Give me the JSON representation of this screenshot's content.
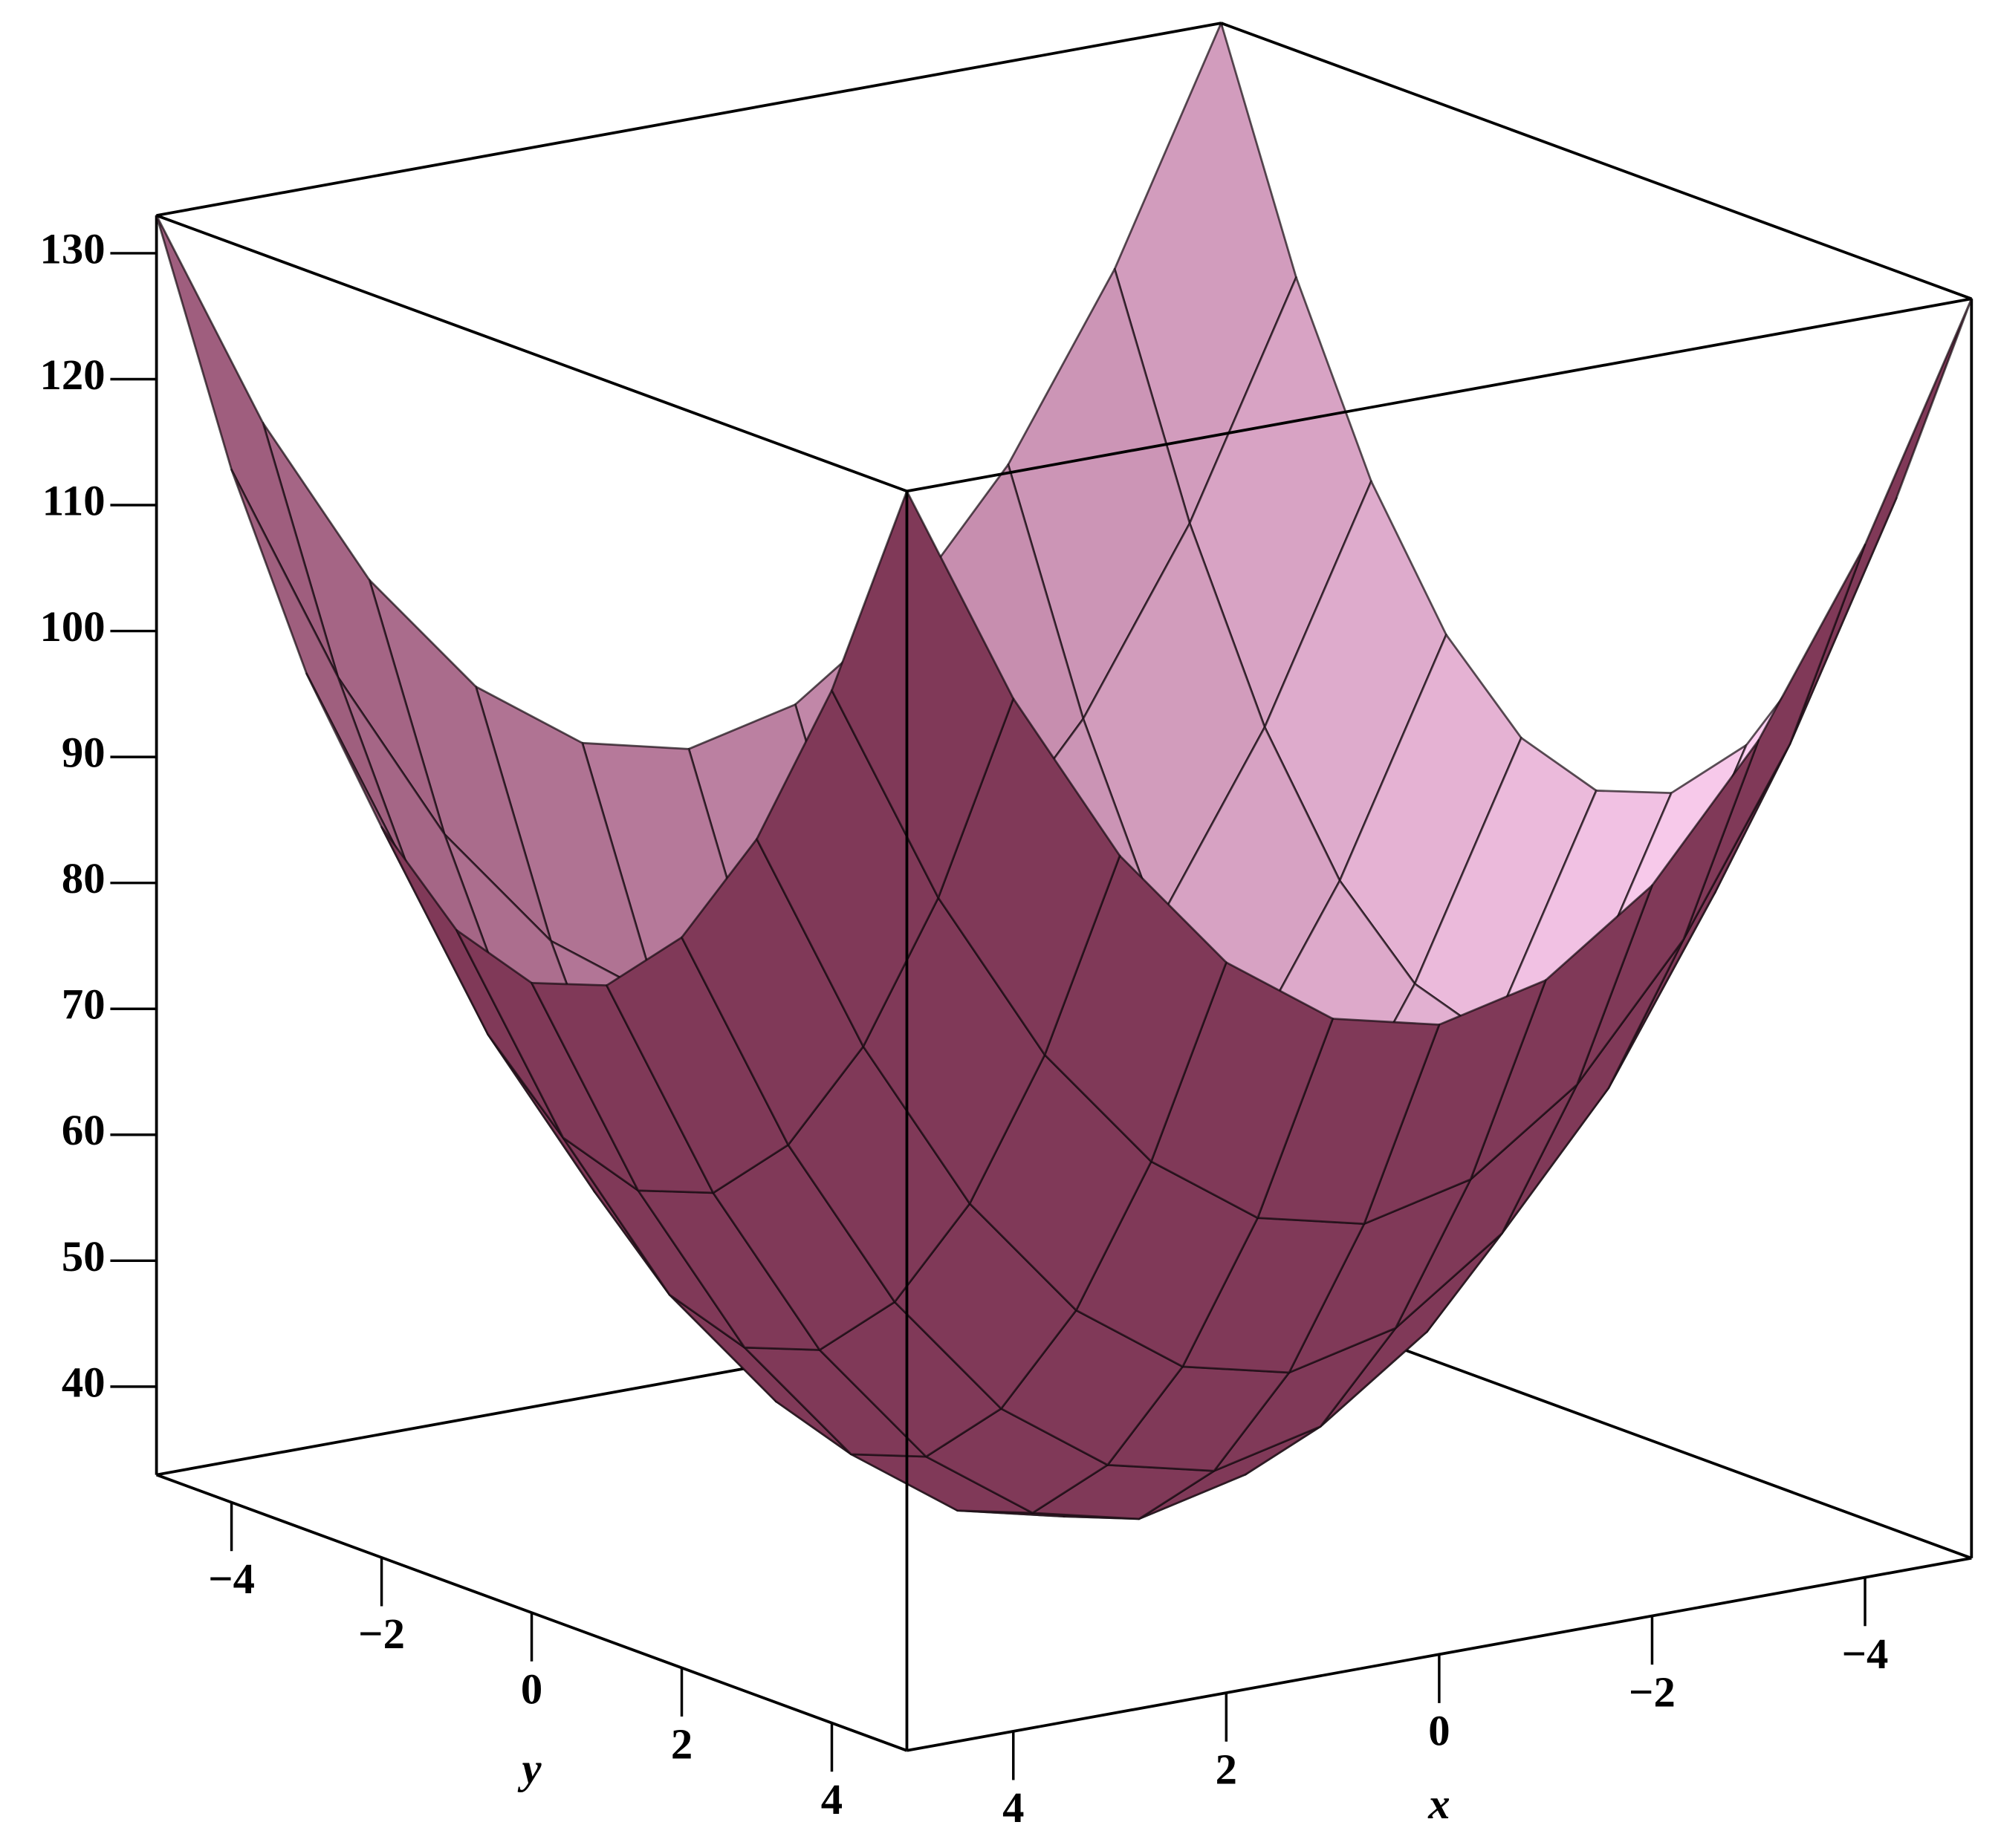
{
  "chart_data": {
    "type": "surface",
    "x": [
      -5,
      -4,
      -3,
      -2,
      -1,
      0,
      1,
      2,
      3,
      4,
      5
    ],
    "y": [
      -5,
      -4,
      -3,
      -2,
      -1,
      0,
      1,
      2,
      3,
      4,
      5
    ],
    "z": [
      [
        133,
        115,
        101,
        91,
        85,
        83,
        85,
        91,
        101,
        115,
        133
      ],
      [
        115,
        97,
        83,
        73,
        67,
        65,
        67,
        73,
        83,
        97,
        115
      ],
      [
        101,
        83,
        69,
        59,
        53,
        51,
        53,
        59,
        69,
        83,
        101
      ],
      [
        91,
        73,
        59,
        49,
        43,
        41,
        43,
        49,
        59,
        73,
        91
      ],
      [
        85,
        67,
        53,
        43,
        37,
        35,
        37,
        43,
        53,
        67,
        85
      ],
      [
        83,
        65,
        51,
        41,
        35,
        33,
        35,
        41,
        51,
        65,
        83
      ],
      [
        85,
        67,
        53,
        43,
        37,
        35,
        37,
        43,
        53,
        67,
        85
      ],
      [
        91,
        73,
        59,
        49,
        43,
        41,
        43,
        49,
        59,
        73,
        91
      ],
      [
        101,
        83,
        69,
        59,
        53,
        51,
        53,
        59,
        69,
        83,
        101
      ],
      [
        115,
        97,
        83,
        73,
        67,
        65,
        67,
        73,
        83,
        97,
        115
      ],
      [
        133,
        115,
        101,
        91,
        85,
        83,
        85,
        91,
        101,
        115,
        133
      ]
    ],
    "xlim": [
      -5,
      5
    ],
    "ylim": [
      -5,
      5
    ],
    "zlim": [
      33,
      133
    ],
    "xticks": [
      {
        "value": -4,
        "label": "−4"
      },
      {
        "value": -2,
        "label": "−2"
      },
      0,
      2,
      4
    ],
    "yticks": [
      {
        "value": -4,
        "label": "−4"
      },
      {
        "value": -2,
        "label": "−2"
      },
      0,
      2,
      4
    ],
    "zticks": [
      40,
      50,
      60,
      70,
      80,
      90,
      100,
      110,
      120,
      130
    ],
    "xlabel": "x",
    "ylabel": "y",
    "color": "#7b3352",
    "inner_color": "#ffd2f4"
  }
}
